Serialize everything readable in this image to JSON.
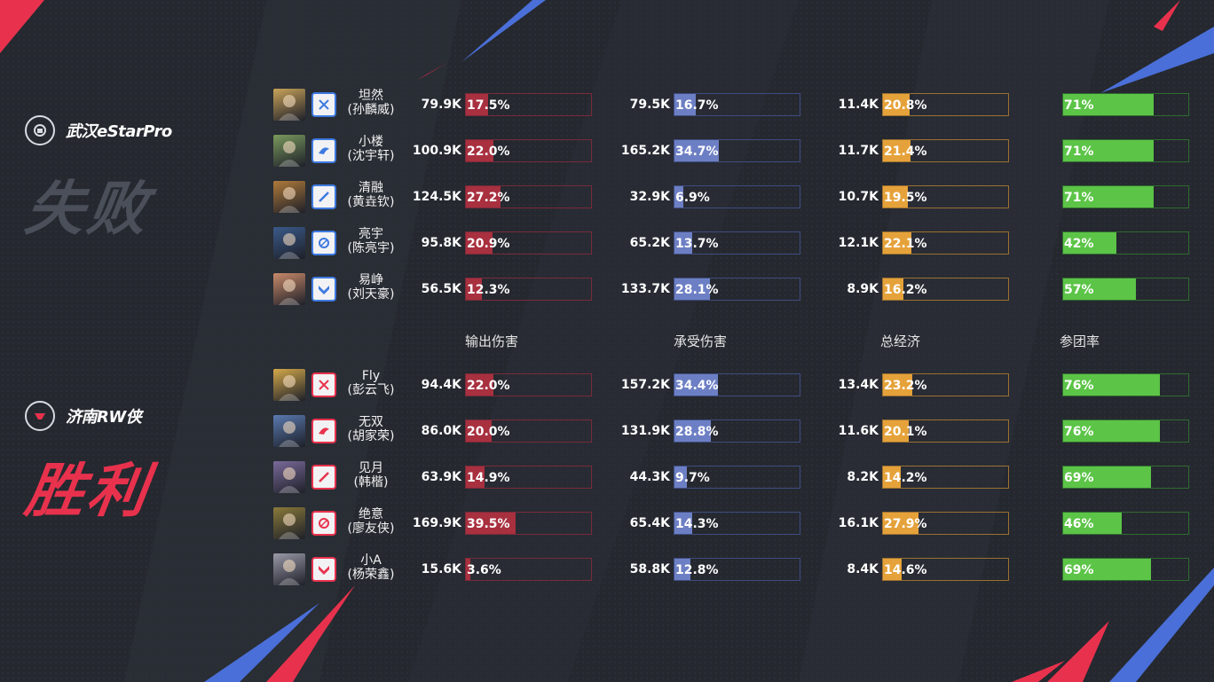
{
  "columns": [
    "输出伤害",
    "承受伤害",
    "总经济",
    "参团率"
  ],
  "team_top": {
    "name": "武汉eStarPro",
    "result": "失败",
    "players": [
      {
        "name": "坦然",
        "real_name": "(孙麟威)",
        "damage": "79.9K",
        "damage_pct": "17.5%",
        "taken": "79.5K",
        "taken_pct": "16.7%",
        "gold": "11.4K",
        "gold_pct": "20.8%",
        "participation": "71%",
        "hero_color": "#c9a35a",
        "role_icon": "jungle-sword-icon"
      },
      {
        "name": "小楼",
        "real_name": "(沈宇轩)",
        "damage": "100.9K",
        "damage_pct": "22.0%",
        "taken": "165.2K",
        "taken_pct": "34.7%",
        "gold": "11.7K",
        "gold_pct": "21.4%",
        "participation": "71%",
        "hero_color": "#7a9a5e",
        "role_icon": "support-wing-icon"
      },
      {
        "name": "清融",
        "real_name": "(黄垚钦)",
        "damage": "124.5K",
        "damage_pct": "27.2%",
        "taken": "32.9K",
        "taken_pct": "6.9%",
        "gold": "10.7K",
        "gold_pct": "19.5%",
        "participation": "71%",
        "hero_color": "#b07a3a",
        "role_icon": "marksman-bow-icon"
      },
      {
        "name": "亮宇",
        "real_name": "(陈亮宇)",
        "damage": "95.8K",
        "damage_pct": "20.9%",
        "taken": "65.2K",
        "taken_pct": "13.7%",
        "gold": "12.1K",
        "gold_pct": "22.1%",
        "participation": "42%",
        "hero_color": "#3a5a8a",
        "role_icon": "mage-orb-icon"
      },
      {
        "name": "易峥",
        "real_name": "(刘天豪)",
        "damage": "56.5K",
        "damage_pct": "12.3%",
        "taken": "133.7K",
        "taken_pct": "28.1%",
        "gold": "8.9K",
        "gold_pct": "16.2%",
        "participation": "57%",
        "hero_color": "#c98a6a",
        "role_icon": "tank-shield-icon"
      }
    ]
  },
  "team_bottom": {
    "name": "济南RW侠",
    "result": "胜利",
    "players": [
      {
        "name": "Fly",
        "real_name": "(彭云飞)",
        "damage": "94.4K",
        "damage_pct": "22.0%",
        "taken": "157.2K",
        "taken_pct": "34.4%",
        "gold": "13.4K",
        "gold_pct": "23.2%",
        "participation": "76%",
        "hero_color": "#d4a94a",
        "role_icon": "jungle-sword-icon"
      },
      {
        "name": "无双",
        "real_name": "(胡家荣)",
        "damage": "86.0K",
        "damage_pct": "20.0%",
        "taken": "131.9K",
        "taken_pct": "28.8%",
        "gold": "11.6K",
        "gold_pct": "20.1%",
        "participation": "76%",
        "hero_color": "#5a7ab0",
        "role_icon": "support-wing-icon"
      },
      {
        "name": "见月",
        "real_name": "(韩楷)",
        "damage": "63.9K",
        "damage_pct": "14.9%",
        "taken": "44.3K",
        "taken_pct": "9.7%",
        "gold": "8.2K",
        "gold_pct": "14.2%",
        "participation": "69%",
        "hero_color": "#7a6a9a",
        "role_icon": "marksman-bow-icon"
      },
      {
        "name": "绝意",
        "real_name": "(廖友侠)",
        "damage": "169.9K",
        "damage_pct": "39.5%",
        "taken": "65.4K",
        "taken_pct": "14.3%",
        "gold": "16.1K",
        "gold_pct": "27.9%",
        "participation": "46%",
        "hero_color": "#8a7a3a",
        "role_icon": "mage-orb-icon"
      },
      {
        "name": "小A",
        "real_name": "(杨荣鑫)",
        "damage": "15.6K",
        "damage_pct": "3.6%",
        "taken": "58.8K",
        "taken_pct": "12.8%",
        "gold": "8.4K",
        "gold_pct": "14.6%",
        "participation": "69%",
        "hero_color": "#9a9aa8",
        "role_icon": "tank-shield-icon"
      }
    ]
  }
}
